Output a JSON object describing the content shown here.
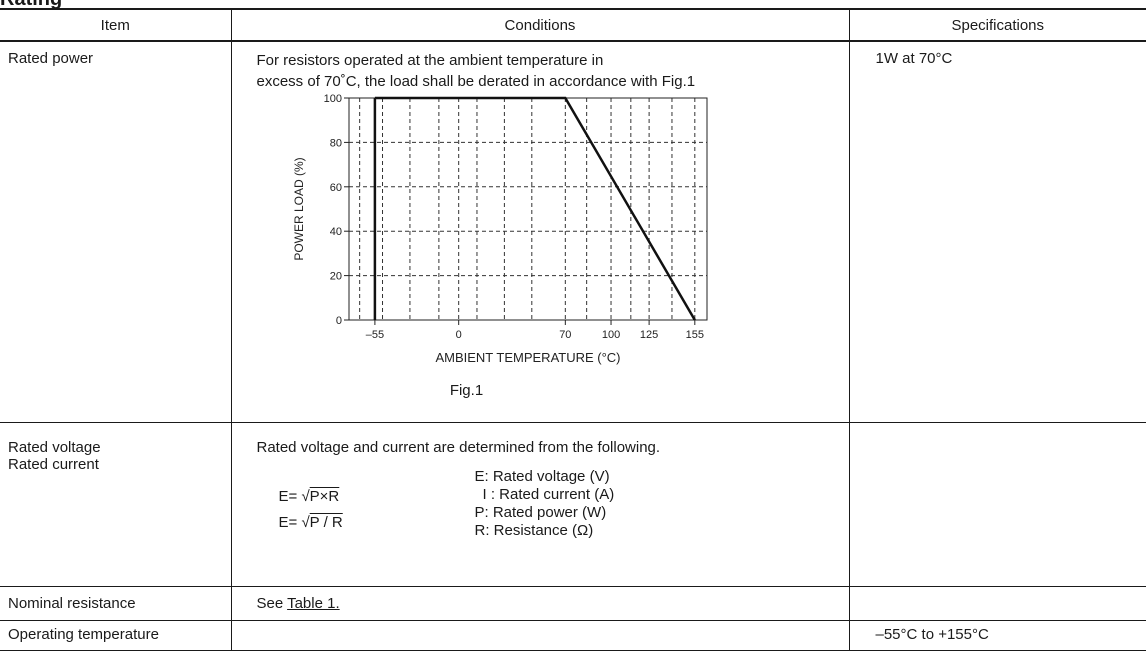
{
  "header": {
    "cut_title": "Rating",
    "col_item": "Item",
    "col_conditions": "Conditions",
    "col_specs": "Specifications"
  },
  "rows": {
    "rated_power": {
      "item": "Rated power",
      "condition_line1": "For resistors operated at the ambient temperature in",
      "condition_line2": "excess of 70˚C, the load shall be derated in accordance with Fig.1",
      "spec": "1W  at 70°C",
      "fig_caption": "Fig.1"
    },
    "rated_voltage": {
      "item_line1": "Rated voltage",
      "item_line2": "Rated current",
      "condition": "Rated voltage and current are determined from the following.",
      "formula1_prefix": "E= ",
      "formula1_radicand": "P×R",
      "formula2_prefix": "E= ",
      "formula2_radicand": "P / R",
      "legend": [
        "E: Rated voltage (V)",
        "I : Rated current (A)",
        "P: Rated power (W)",
        "R: Resistance (Ω)"
      ],
      "spec": ""
    },
    "nominal_resistance": {
      "item": "Nominal resistance",
      "condition_prefix": "See ",
      "condition_link": "Table 1.",
      "spec": ""
    },
    "operating_temperature": {
      "item": "Operating temperature",
      "condition": "",
      "spec": "–55°C to +155°C"
    }
  },
  "chart_data": {
    "type": "line",
    "xlabel": "AMBIENT  TEMPERATURE (°C)",
    "ylabel": "POWER  LOAD (%)",
    "x_ticks": [
      "–55",
      "0",
      "70",
      "100",
      "125",
      "155"
    ],
    "y_ticks": [
      "0",
      "20",
      "40",
      "60",
      "80",
      "100"
    ],
    "series": [
      {
        "x": [
          -55,
          70,
          155
        ],
        "y": [
          100,
          100,
          0
        ]
      }
    ],
    "grid": true
  }
}
